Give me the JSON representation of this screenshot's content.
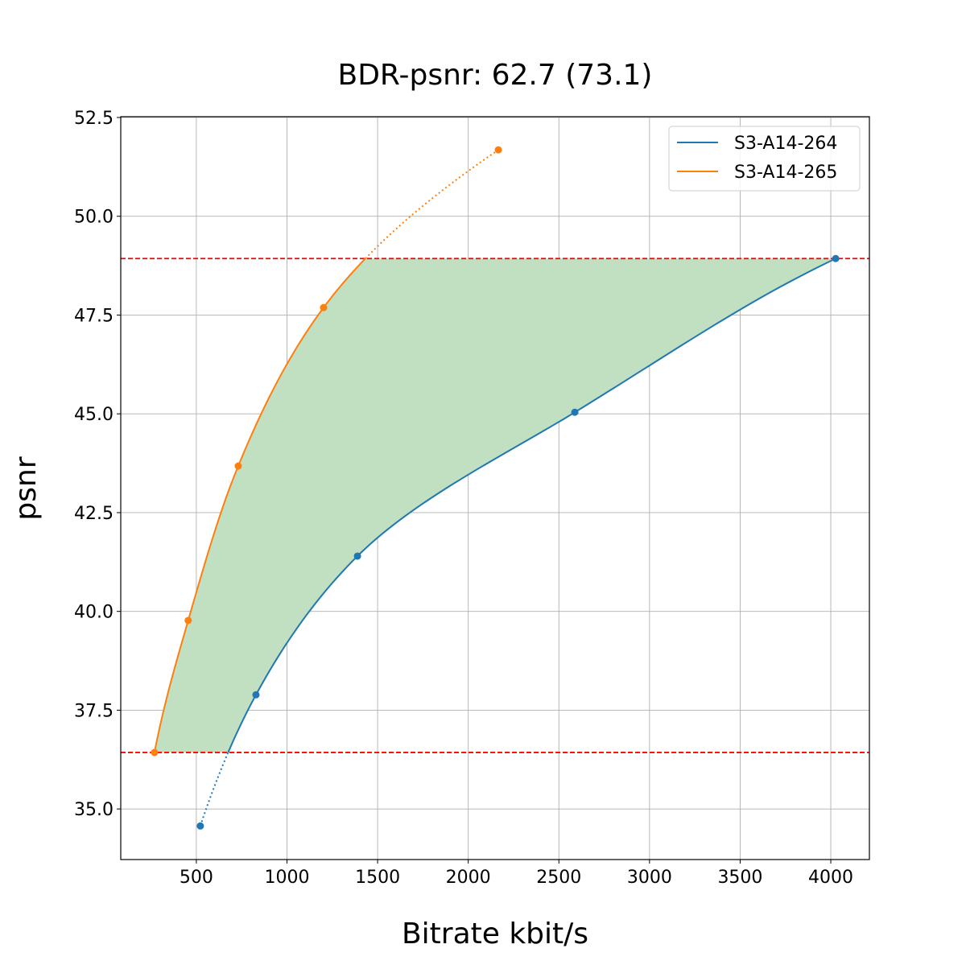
{
  "chart_data": {
    "type": "line",
    "title": "BDR-psnr: 62.7 (73.1)",
    "xlabel": "Bitrate kbit/s",
    "ylabel": "psnr",
    "xlim": [
      83,
      4213
    ],
    "ylim": [
      33.72,
      52.52
    ],
    "xticks": [
      500,
      1000,
      1500,
      2000,
      2500,
      3000,
      3500,
      4000
    ],
    "yticks": [
      "35.0",
      "37.5",
      "40.0",
      "42.5",
      "45.0",
      "47.5",
      "50.0",
      "52.5"
    ],
    "grid": true,
    "legend_position": "top-right",
    "series": [
      {
        "name": "S3-A14-264",
        "color": "#1f77b4",
        "x": [
          522,
          829,
          1389,
          2588,
          4027
        ],
        "y": [
          34.57,
          37.89,
          41.4,
          45.04,
          48.93
        ]
      },
      {
        "name": "S3-A14-265",
        "color": "#ff7f0e",
        "x": [
          269,
          455,
          731,
          1202,
          2166
        ],
        "y": [
          36.43,
          39.77,
          43.68,
          47.69,
          51.68
        ]
      }
    ],
    "reference_lines": {
      "y": [
        36.43,
        48.93
      ],
      "color": "#ff0000",
      "style": "dashed"
    },
    "fill_between": {
      "color": "#c1dfc1",
      "y_range": [
        36.43,
        48.93
      ]
    }
  }
}
